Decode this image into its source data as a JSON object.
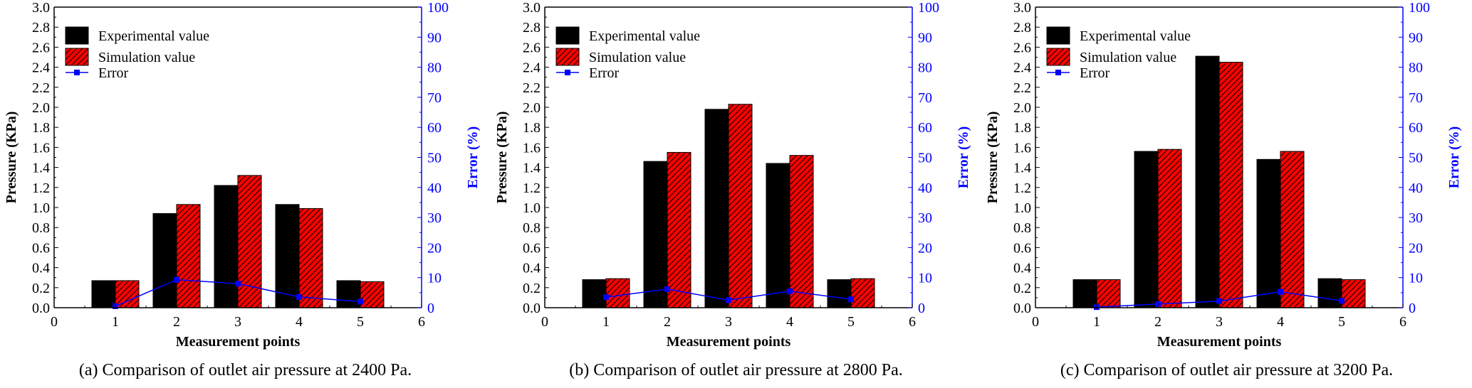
{
  "chart_data": [
    {
      "type": "bar",
      "caption": "(a) Comparison of outlet air pressure at 2400 Pa.",
      "xlabel": "Measurement points",
      "ylabel": "Pressure (KPa)",
      "y2label": "Error (%)",
      "xlim": [
        0,
        6
      ],
      "ylim": [
        0,
        3.0
      ],
      "y2lim": [
        0,
        100
      ],
      "x_ticks": [
        "0",
        "1",
        "2",
        "3",
        "4",
        "5",
        "6"
      ],
      "y_ticks": [
        "0.0",
        "0.2",
        "0.4",
        "0.6",
        "0.8",
        "1.0",
        "1.2",
        "1.4",
        "1.6",
        "1.8",
        "2.0",
        "2.2",
        "2.4",
        "2.6",
        "2.8",
        "3.0"
      ],
      "y2_ticks": [
        "0",
        "10",
        "20",
        "30",
        "40",
        "50",
        "60",
        "70",
        "80",
        "90",
        "100"
      ],
      "categories": [
        1,
        2,
        3,
        4,
        5
      ],
      "series": [
        {
          "name": "Experimental value",
          "kind": "bar",
          "axis": "left",
          "color": "#000000",
          "values": [
            0.27,
            0.94,
            1.22,
            1.03,
            0.27
          ]
        },
        {
          "name": "Simulation value",
          "kind": "bar",
          "axis": "left",
          "color": "#ff0000",
          "hatch": true,
          "values": [
            0.27,
            1.03,
            1.32,
            0.99,
            0.26
          ]
        },
        {
          "name": "Error",
          "kind": "line",
          "axis": "right",
          "color": "#0000ff",
          "values": [
            0.5,
            9.3,
            8.0,
            3.6,
            2.0
          ]
        }
      ],
      "legend": "top-left"
    },
    {
      "type": "bar",
      "caption": "(b) Comparison of outlet air pressure at 2800 Pa.",
      "xlabel": "Measurement points",
      "ylabel": "Pressure (KPa)",
      "y2label": "Error (%)",
      "xlim": [
        0,
        6
      ],
      "ylim": [
        0,
        3.0
      ],
      "y2lim": [
        0,
        100
      ],
      "x_ticks": [
        "0",
        "1",
        "2",
        "3",
        "4",
        "5",
        "6"
      ],
      "y_ticks": [
        "0.0",
        "0.2",
        "0.4",
        "0.6",
        "0.8",
        "1.0",
        "1.2",
        "1.4",
        "1.6",
        "1.8",
        "2.0",
        "2.2",
        "2.4",
        "2.6",
        "2.8",
        "3.0"
      ],
      "y2_ticks": [
        "0",
        "10",
        "20",
        "30",
        "40",
        "50",
        "60",
        "70",
        "80",
        "90",
        "100"
      ],
      "categories": [
        1,
        2,
        3,
        4,
        5
      ],
      "series": [
        {
          "name": "Experimental value",
          "kind": "bar",
          "axis": "left",
          "color": "#000000",
          "values": [
            0.28,
            1.46,
            1.98,
            1.44,
            0.28
          ]
        },
        {
          "name": "Simulation value",
          "kind": "bar",
          "axis": "left",
          "color": "#ff0000",
          "hatch": true,
          "values": [
            0.29,
            1.55,
            2.03,
            1.52,
            0.29
          ]
        },
        {
          "name": "Error",
          "kind": "line",
          "axis": "right",
          "color": "#0000ff",
          "values": [
            3.5,
            6.2,
            2.5,
            5.5,
            2.8
          ]
        }
      ],
      "legend": "top-left"
    },
    {
      "type": "bar",
      "caption": "(c) Comparison of outlet air pressure at 3200 Pa.",
      "xlabel": "Measurement points",
      "ylabel": "Pressure (KPa)",
      "y2label": "Error (%)",
      "xlim": [
        0,
        6
      ],
      "ylim": [
        0,
        3.0
      ],
      "y2lim": [
        0,
        100
      ],
      "x_ticks": [
        "0",
        "1",
        "2",
        "3",
        "4",
        "5",
        "6"
      ],
      "y_ticks": [
        "0.0",
        "0.2",
        "0.4",
        "0.6",
        "0.8",
        "1.0",
        "1.2",
        "1.4",
        "1.6",
        "1.8",
        "2.0",
        "2.2",
        "2.4",
        "2.6",
        "2.8",
        "3.0"
      ],
      "y2_ticks": [
        "0",
        "10",
        "20",
        "30",
        "40",
        "50",
        "60",
        "70",
        "80",
        "90",
        "100"
      ],
      "categories": [
        1,
        2,
        3,
        4,
        5
      ],
      "series": [
        {
          "name": "Experimental value",
          "kind": "bar",
          "axis": "left",
          "color": "#000000",
          "values": [
            0.28,
            1.56,
            2.51,
            1.48,
            0.29
          ]
        },
        {
          "name": "Simulation value",
          "kind": "bar",
          "axis": "left",
          "color": "#ff0000",
          "hatch": true,
          "values": [
            0.28,
            1.58,
            2.45,
            1.56,
            0.28
          ]
        },
        {
          "name": "Error",
          "kind": "line",
          "axis": "right",
          "color": "#0000ff",
          "values": [
            0.2,
            1.2,
            2.2,
            5.3,
            2.3
          ]
        }
      ],
      "legend": "top-left"
    }
  ]
}
